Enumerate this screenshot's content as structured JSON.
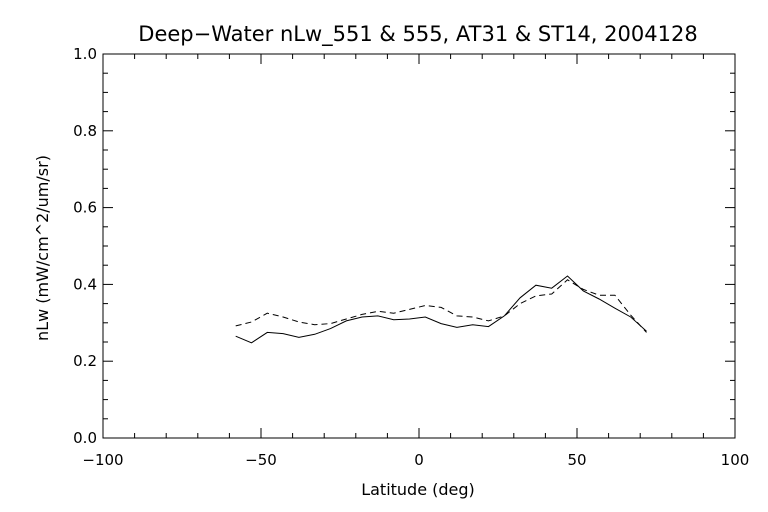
{
  "chart_data": {
    "type": "line",
    "title": "Deep−Water nLw_551 & 555, AT31 & ST14, 2004128",
    "xlabel": "Latitude (deg)",
    "ylabel": "nLw (mW/cm^2/um/sr)",
    "xlim": [
      -100,
      100
    ],
    "ylim": [
      0.0,
      1.0
    ],
    "x_ticks": [
      -100,
      -50,
      0,
      50,
      100
    ],
    "x_tick_labels": [
      "−100",
      "−50",
      "0",
      "50",
      "100"
    ],
    "y_ticks": [
      0.0,
      0.2,
      0.4,
      0.6,
      0.8,
      1.0
    ],
    "y_tick_labels": [
      "0.0",
      "0.2",
      "0.4",
      "0.6",
      "0.8",
      "1.0"
    ],
    "x_minor_step": 10,
    "y_minor_step": 0.05,
    "grid": false,
    "series": [
      {
        "style": "solid",
        "x": [
          -58,
          -53,
          -48,
          -43,
          -38,
          -33,
          -28,
          -23,
          -18,
          -13,
          -8,
          -3,
          2,
          7,
          12,
          17,
          22,
          27,
          32,
          37,
          42,
          47,
          52,
          57,
          62,
          67,
          72
        ],
        "y": [
          0.265,
          0.248,
          0.275,
          0.272,
          0.262,
          0.27,
          0.285,
          0.305,
          0.315,
          0.318,
          0.308,
          0.31,
          0.315,
          0.298,
          0.288,
          0.295,
          0.29,
          0.318,
          0.365,
          0.398,
          0.39,
          0.422,
          0.383,
          0.362,
          0.338,
          0.315,
          0.278
        ]
      },
      {
        "style": "dashed",
        "x": [
          -58,
          -53,
          -48,
          -43,
          -38,
          -33,
          -28,
          -23,
          -18,
          -13,
          -8,
          -3,
          2,
          7,
          12,
          17,
          22,
          27,
          32,
          37,
          42,
          47,
          52,
          57,
          62,
          67,
          72
        ],
        "y": [
          0.292,
          0.302,
          0.325,
          0.315,
          0.302,
          0.295,
          0.298,
          0.31,
          0.322,
          0.33,
          0.325,
          0.335,
          0.345,
          0.34,
          0.318,
          0.315,
          0.305,
          0.318,
          0.35,
          0.37,
          0.375,
          0.412,
          0.387,
          0.372,
          0.372,
          0.32,
          0.275
        ]
      }
    ]
  }
}
